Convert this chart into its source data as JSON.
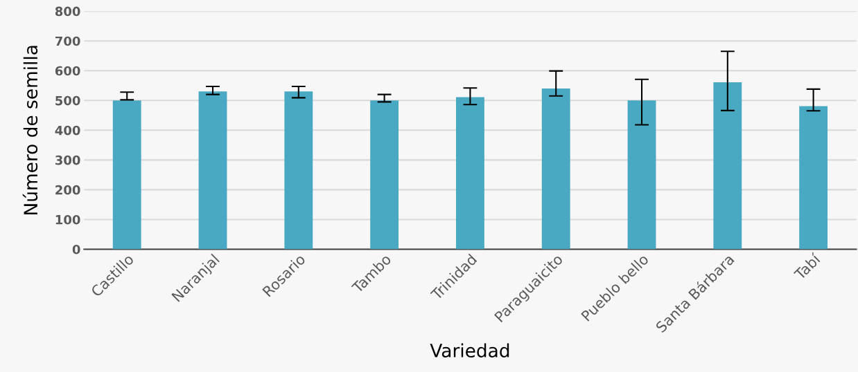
{
  "chart_data": {
    "type": "bar",
    "xlabel": "Variedad",
    "ylabel": "Número de semilla",
    "categories": [
      "Castillo",
      "Naranjal",
      "Rosario",
      "Tambo",
      "Trinidad",
      "Paraguaicito",
      "Pueblo bello",
      "Santa Bárbara",
      "Tabí"
    ],
    "values": [
      500,
      530,
      530,
      500,
      511,
      540,
      500,
      561,
      481
    ],
    "errors": [
      [
        502,
        528
      ],
      [
        520,
        547
      ],
      [
        509,
        547
      ],
      [
        495,
        520
      ],
      [
        486,
        542
      ],
      [
        515,
        599
      ],
      [
        418,
        571
      ],
      [
        466,
        665
      ],
      [
        465,
        538
      ]
    ],
    "color": "#4aa9c2",
    "ylim": [
      0,
      800
    ],
    "yticks": [
      0,
      100,
      200,
      300,
      400,
      500,
      600,
      700,
      800
    ],
    "grid": "y"
  }
}
